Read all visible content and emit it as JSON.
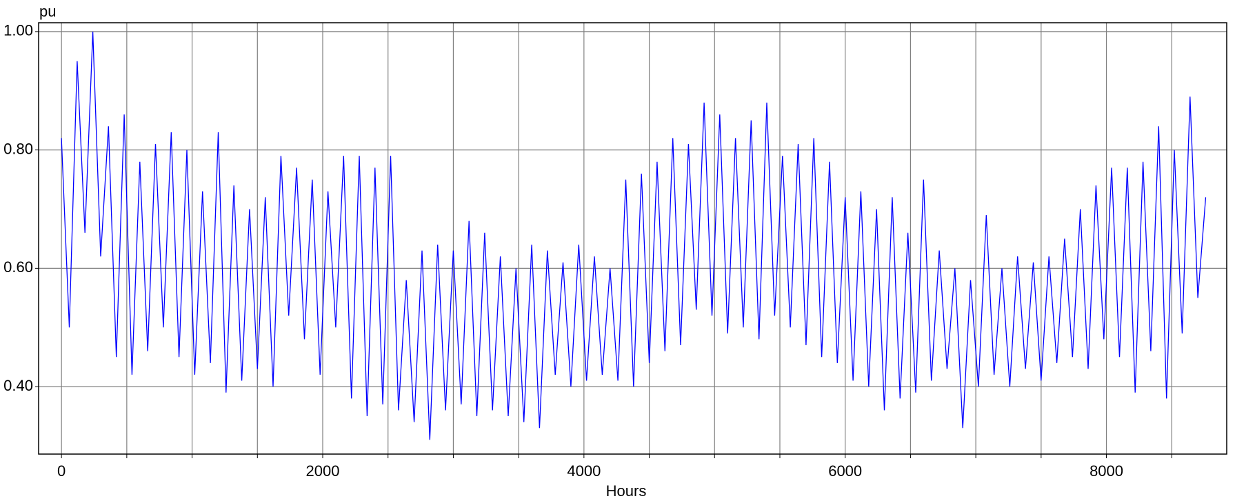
{
  "chart_data": {
    "type": "line",
    "y_label": "pu",
    "x_label": "Hours",
    "x": [
      0,
      60,
      120,
      180,
      240,
      300,
      360,
      420,
      480,
      540,
      600,
      660,
      720,
      780,
      840,
      900,
      960,
      1020,
      1080,
      1140,
      1200,
      1260,
      1320,
      1380,
      1440,
      1500,
      1560,
      1620,
      1680,
      1740,
      1800,
      1860,
      1920,
      1980,
      2040,
      2100,
      2160,
      2220,
      2280,
      2340,
      2400,
      2460,
      2520,
      2580,
      2640,
      2700,
      2760,
      2820,
      2880,
      2940,
      3000,
      3060,
      3120,
      3180,
      3240,
      3300,
      3360,
      3420,
      3480,
      3540,
      3600,
      3660,
      3720,
      3780,
      3840,
      3900,
      3960,
      4020,
      4080,
      4140,
      4200,
      4260,
      4320,
      4380,
      4440,
      4500,
      4560,
      4620,
      4680,
      4740,
      4800,
      4860,
      4920,
      4980,
      5040,
      5100,
      5160,
      5220,
      5280,
      5340,
      5400,
      5460,
      5520,
      5580,
      5640,
      5700,
      5760,
      5820,
      5880,
      5940,
      6000,
      6060,
      6120,
      6180,
      6240,
      6300,
      6360,
      6420,
      6480,
      6540,
      6600,
      6660,
      6720,
      6780,
      6840,
      6900,
      6960,
      7020,
      7080,
      7140,
      7200,
      7260,
      7320,
      7380,
      7440,
      7500,
      7560,
      7620,
      7680,
      7740,
      7800,
      7860,
      7920,
      7980,
      8040,
      8100,
      8160,
      8220,
      8280,
      8340,
      8400,
      8460,
      8520,
      8580,
      8640,
      8700,
      8760
    ],
    "series": [
      {
        "color": "#0000ff",
        "values": [
          0.82,
          0.5,
          0.95,
          0.66,
          1.0,
          0.62,
          0.84,
          0.45,
          0.86,
          0.42,
          0.78,
          0.46,
          0.81,
          0.5,
          0.83,
          0.45,
          0.8,
          0.42,
          0.73,
          0.44,
          0.83,
          0.39,
          0.74,
          0.41,
          0.7,
          0.43,
          0.72,
          0.4,
          0.79,
          0.52,
          0.77,
          0.48,
          0.75,
          0.42,
          0.73,
          0.5,
          0.79,
          0.38,
          0.79,
          0.35,
          0.77,
          0.37,
          0.79,
          0.36,
          0.58,
          0.34,
          0.63,
          0.31,
          0.64,
          0.36,
          0.63,
          0.37,
          0.68,
          0.35,
          0.66,
          0.36,
          0.62,
          0.35,
          0.6,
          0.34,
          0.64,
          0.33,
          0.63,
          0.42,
          0.61,
          0.4,
          0.64,
          0.41,
          0.62,
          0.42,
          0.6,
          0.41,
          0.75,
          0.4,
          0.76,
          0.44,
          0.78,
          0.46,
          0.82,
          0.47,
          0.81,
          0.53,
          0.88,
          0.52,
          0.86,
          0.49,
          0.82,
          0.5,
          0.85,
          0.48,
          0.88,
          0.52,
          0.79,
          0.5,
          0.81,
          0.47,
          0.82,
          0.45,
          0.78,
          0.44,
          0.72,
          0.41,
          0.73,
          0.4,
          0.7,
          0.36,
          0.72,
          0.38,
          0.66,
          0.39,
          0.75,
          0.41,
          0.63,
          0.43,
          0.6,
          0.33,
          0.58,
          0.4,
          0.69,
          0.42,
          0.6,
          0.4,
          0.62,
          0.43,
          0.61,
          0.41,
          0.62,
          0.44,
          0.65,
          0.45,
          0.7,
          0.43,
          0.74,
          0.48,
          0.77,
          0.45,
          0.77,
          0.39,
          0.78,
          0.46,
          0.84,
          0.38,
          0.8,
          0.49,
          0.89,
          0.55,
          0.72
        ]
      }
    ],
    "xlim": [
      -175,
      8921
    ],
    "xticks": [
      0,
      2000,
      4000,
      6000,
      8000
    ],
    "xminor_ticks": [
      500,
      1000,
      1500,
      2500,
      3000,
      3500,
      4500,
      5000,
      5500,
      6500,
      7000,
      7500,
      8500
    ],
    "ylim": [
      0.286,
      1.015
    ],
    "yticks": [
      {
        "value": 0.4,
        "label": "0.40"
      },
      {
        "value": 0.6,
        "label": "0.60"
      },
      {
        "value": 0.8,
        "label": "0.80"
      },
      {
        "value": 1.0,
        "label": "1.00"
      }
    ],
    "grid": true
  }
}
